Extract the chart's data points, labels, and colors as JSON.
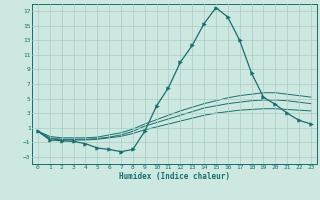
{
  "xlabel": "Humidex (Indice chaleur)",
  "bg_color": "#cce8e0",
  "grid_color": "#aaccc4",
  "line_color": "#1a6e6e",
  "xlim": [
    -0.5,
    23.5
  ],
  "ylim": [
    -4,
    18
  ],
  "yticks": [
    -3,
    -1,
    1,
    3,
    5,
    7,
    9,
    11,
    13,
    15,
    17
  ],
  "xticks": [
    0,
    1,
    2,
    3,
    4,
    5,
    6,
    7,
    8,
    9,
    10,
    11,
    12,
    13,
    14,
    15,
    16,
    17,
    18,
    19,
    20,
    21,
    22,
    23
  ],
  "series1_x": [
    0,
    1,
    2,
    3,
    4,
    5,
    6,
    7,
    8,
    9,
    10,
    11,
    12,
    13,
    14,
    15,
    16,
    17,
    18,
    19,
    20,
    21,
    22,
    23
  ],
  "series1_y": [
    0.5,
    -0.7,
    -0.8,
    -0.9,
    -1.2,
    -1.8,
    -2.0,
    -2.3,
    -2.0,
    0.5,
    4.0,
    6.5,
    10.0,
    12.3,
    15.3,
    17.5,
    16.2,
    13.0,
    8.5,
    5.2,
    4.2,
    3.0,
    2.0,
    1.5
  ],
  "series2_x": [
    0,
    1,
    2,
    3,
    4,
    5,
    6,
    7,
    8,
    9,
    10,
    11,
    12,
    13,
    14,
    15,
    16,
    17,
    18,
    19,
    20,
    21,
    22,
    23
  ],
  "series2_y": [
    0.5,
    -0.5,
    -0.7,
    -0.7,
    -0.7,
    -0.6,
    -0.4,
    -0.2,
    0.2,
    0.7,
    1.1,
    1.5,
    1.9,
    2.3,
    2.7,
    3.0,
    3.2,
    3.4,
    3.5,
    3.6,
    3.6,
    3.5,
    3.4,
    3.3
  ],
  "series3_x": [
    0,
    1,
    2,
    3,
    4,
    5,
    6,
    7,
    8,
    9,
    10,
    11,
    12,
    13,
    14,
    15,
    16,
    17,
    18,
    19,
    20,
    21,
    22,
    23
  ],
  "series3_y": [
    0.5,
    -0.4,
    -0.6,
    -0.6,
    -0.6,
    -0.5,
    -0.3,
    0.0,
    0.5,
    1.2,
    1.7,
    2.2,
    2.7,
    3.2,
    3.7,
    4.0,
    4.3,
    4.5,
    4.7,
    4.8,
    4.8,
    4.7,
    4.5,
    4.3
  ],
  "series4_x": [
    0,
    1,
    2,
    3,
    4,
    5,
    6,
    7,
    8,
    9,
    10,
    11,
    12,
    13,
    14,
    15,
    16,
    17,
    18,
    19,
    20,
    21,
    22,
    23
  ],
  "series4_y": [
    0.5,
    -0.2,
    -0.4,
    -0.4,
    -0.4,
    -0.3,
    0.0,
    0.3,
    0.8,
    1.5,
    2.1,
    2.7,
    3.3,
    3.8,
    4.3,
    4.7,
    5.1,
    5.4,
    5.6,
    5.8,
    5.8,
    5.6,
    5.4,
    5.2
  ]
}
